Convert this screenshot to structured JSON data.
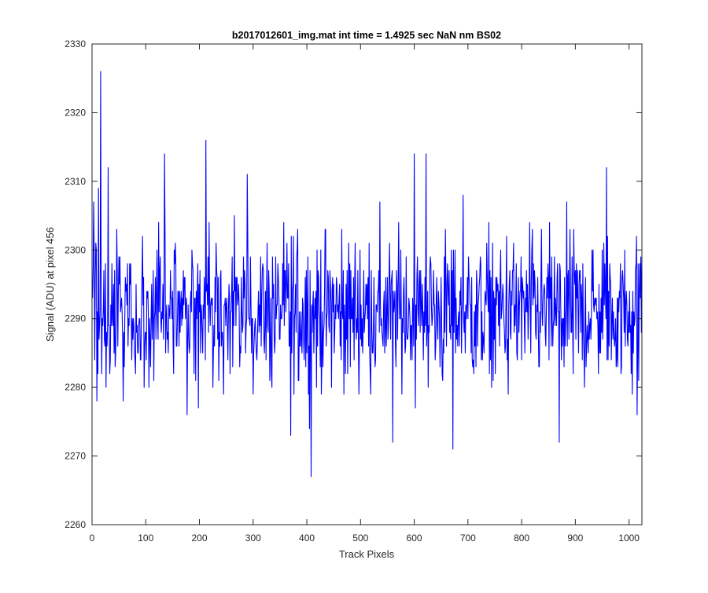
{
  "chart_data": {
    "type": "line",
    "title": "b2017012601_img.mat int time = 1.4925 sec  NaN nm BS02",
    "xlabel": "Track Pixels",
    "ylabel": "Signal (ADU) at pixel 456",
    "xlim": [
      0,
      1024
    ],
    "ylim": [
      2260,
      2330
    ],
    "xticks": [
      0,
      100,
      200,
      300,
      400,
      500,
      600,
      700,
      800,
      900,
      1000
    ],
    "yticks": [
      2260,
      2270,
      2280,
      2290,
      2300,
      2310,
      2320,
      2330
    ],
    "grid": false,
    "legend": "none",
    "series": [
      {
        "color": "#0000ff",
        "sampling": "representative profile reconstructed from the plotted trace, one point per track pixel 1..1024; prominent extremes read from the axes",
        "mean": 2291,
        "noise_amplitude": 7,
        "extremes": [
          {
            "x": 5,
            "y": 2284
          },
          {
            "x": 12,
            "y": 2309
          },
          {
            "x": 16,
            "y": 2326
          },
          {
            "x": 19,
            "y": 2290
          },
          {
            "x": 26,
            "y": 2280
          },
          {
            "x": 30,
            "y": 2312
          },
          {
            "x": 58,
            "y": 2278
          },
          {
            "x": 135,
            "y": 2314
          },
          {
            "x": 198,
            "y": 2277
          },
          {
            "x": 212,
            "y": 2316
          },
          {
            "x": 289,
            "y": 2311
          },
          {
            "x": 370,
            "y": 2273
          },
          {
            "x": 408,
            "y": 2267
          },
          {
            "x": 560,
            "y": 2272
          },
          {
            "x": 600,
            "y": 2314
          },
          {
            "x": 622,
            "y": 2314
          },
          {
            "x": 672,
            "y": 2271
          },
          {
            "x": 691,
            "y": 2308
          },
          {
            "x": 870,
            "y": 2272
          },
          {
            "x": 958,
            "y": 2312
          },
          {
            "x": 1015,
            "y": 2276
          },
          {
            "x": 1022,
            "y": 2299
          }
        ]
      }
    ]
  }
}
